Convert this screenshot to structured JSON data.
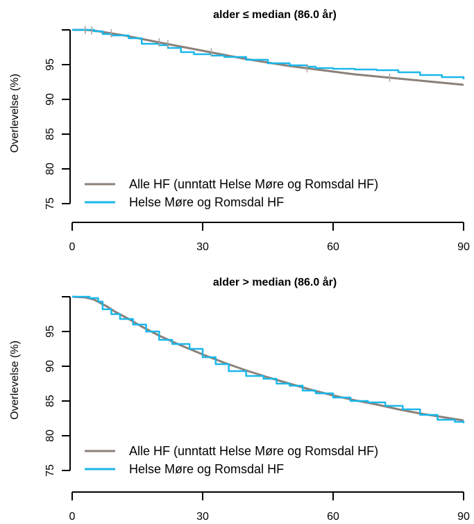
{
  "chart_data": [
    {
      "type": "line",
      "title": "alder ≤ median (86.0 år)",
      "ylabel": "Overlevelse (%)",
      "xlabel": "",
      "xlim": [
        0,
        90
      ],
      "ylim": [
        75,
        100
      ],
      "xticks": [
        "0",
        "30",
        "60",
        "90"
      ],
      "yticks": [
        "75",
        "80",
        "85",
        "90",
        "95"
      ],
      "grid": false,
      "legend": "bottom-left",
      "series": [
        {
          "name": "Alle HF (unntatt Helse Møre og Romsdal HF)",
          "color": "#8c8079",
          "x": [
            0,
            3,
            5,
            8,
            12,
            16,
            20,
            25,
            30,
            35,
            40,
            45,
            50,
            55,
            60,
            65,
            70,
            75,
            80,
            85,
            90
          ],
          "y": [
            100,
            100,
            99.9,
            99.6,
            99.2,
            98.7,
            98.2,
            97.6,
            97.0,
            96.4,
            95.8,
            95.3,
            94.8,
            94.4,
            94.0,
            93.6,
            93.3,
            93.0,
            92.7,
            92.4,
            92.1
          ]
        },
        {
          "name": "Helse Møre og Romsdal HF",
          "color": "#1ab7ea",
          "step": true,
          "x": [
            0,
            5,
            7,
            9,
            13,
            16,
            20,
            22,
            25,
            28,
            32,
            35,
            40,
            45,
            50,
            54,
            56,
            60,
            65,
            70,
            75,
            80,
            85,
            90
          ],
          "y": [
            100,
            99.8,
            99.4,
            99.2,
            98.8,
            98.0,
            97.8,
            97.4,
            96.8,
            96.5,
            96.3,
            96.1,
            95.7,
            95.2,
            94.9,
            94.7,
            94.5,
            94.4,
            94.3,
            94.2,
            93.9,
            93.5,
            93.2,
            92.9
          ]
        }
      ],
      "censor_marks": [
        {
          "series": "Alle HF (unntatt Helse Møre og Romsdal HF)",
          "x": [
            3,
            4.5,
            9,
            20,
            22,
            32,
            54,
            73
          ]
        }
      ]
    },
    {
      "type": "line",
      "title": "alder > median (86.0 år)",
      "ylabel": "Overlevelse (%)",
      "xlabel": "",
      "xlim": [
        0,
        90
      ],
      "ylim": [
        75,
        100
      ],
      "xticks": [
        "0",
        "30",
        "60",
        "90"
      ],
      "yticks": [
        "75",
        "80",
        "85",
        "90",
        "95"
      ],
      "grid": false,
      "legend": "bottom-left",
      "series": [
        {
          "name": "Alle HF (unntatt Helse Møre og Romsdal HF)",
          "color": "#8c8079",
          "x": [
            0,
            3,
            5,
            8,
            10,
            13,
            16,
            20,
            25,
            30,
            35,
            40,
            45,
            50,
            55,
            60,
            65,
            70,
            75,
            80,
            85,
            90
          ],
          "y": [
            100,
            99.9,
            99.6,
            98.6,
            97.8,
            96.8,
            95.7,
            94.4,
            93.0,
            91.7,
            90.5,
            89.4,
            88.4,
            87.5,
            86.6,
            85.8,
            85.1,
            84.5,
            83.8,
            83.2,
            82.7,
            82.2
          ]
        },
        {
          "name": "Helse Møre og Romsdal HF",
          "color": "#1ab7ea",
          "step": true,
          "x": [
            0,
            4,
            6,
            7,
            9,
            11,
            14,
            17,
            20,
            23,
            27,
            30,
            33,
            36,
            40,
            44,
            47,
            50,
            53,
            56,
            60,
            64,
            68,
            72,
            76,
            80,
            84,
            88,
            90
          ],
          "y": [
            100,
            99.8,
            99.3,
            98.2,
            97.5,
            96.8,
            96.0,
            95.0,
            93.8,
            93.2,
            92.5,
            91.3,
            90.3,
            89.3,
            88.6,
            88.2,
            87.5,
            87.2,
            86.5,
            86.1,
            85.5,
            85.0,
            84.8,
            84.3,
            83.8,
            83.0,
            82.3,
            82.0,
            81.8
          ]
        }
      ],
      "censor_marks": []
    }
  ]
}
